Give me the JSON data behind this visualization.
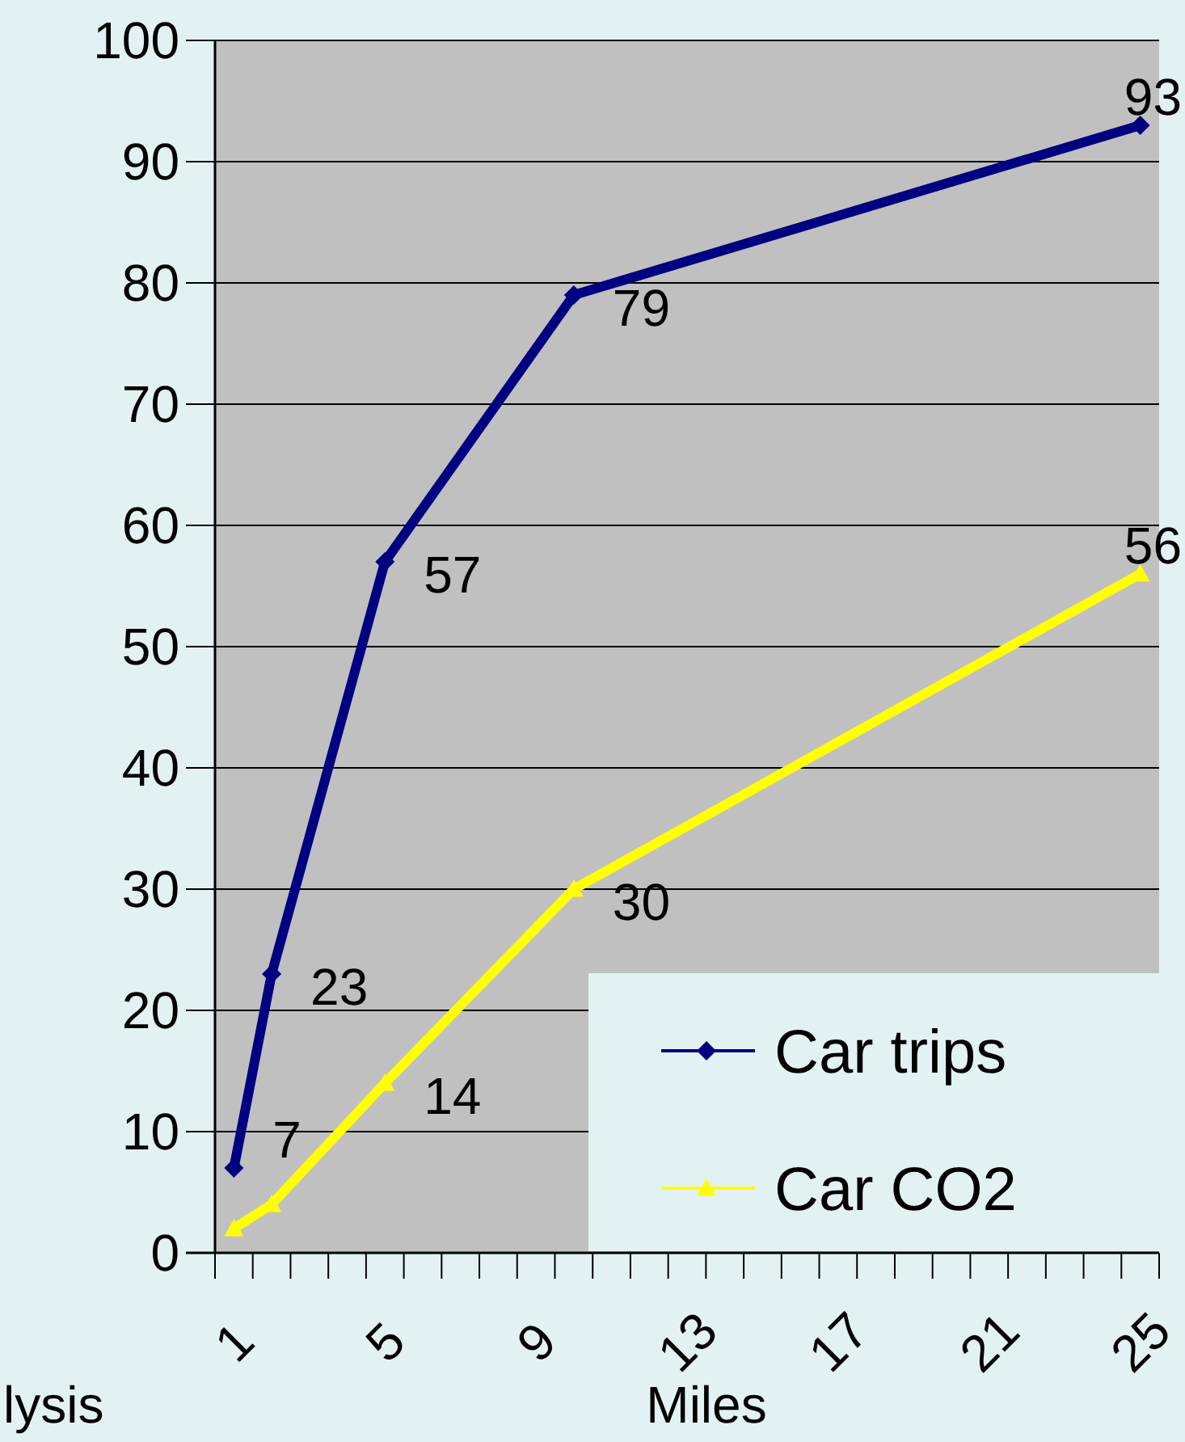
{
  "chart_data": {
    "type": "line",
    "xlabel": "Miles",
    "categories": [
      "1",
      null,
      null,
      null,
      "5",
      null,
      null,
      null,
      "9",
      null,
      null,
      null,
      "13",
      null,
      null,
      null,
      "17",
      null,
      null,
      null,
      "21",
      null,
      null,
      null,
      "25"
    ],
    "series": [
      {
        "name": "Car trips",
        "color": "#000080",
        "marker": "diamond",
        "values": [
          7,
          23,
          null,
          null,
          57,
          null,
          null,
          null,
          null,
          79,
          null,
          null,
          null,
          null,
          null,
          null,
          null,
          null,
          null,
          null,
          null,
          null,
          null,
          null,
          93
        ],
        "value_labels": [
          "7",
          "23",
          null,
          null,
          "57",
          null,
          null,
          null,
          null,
          "79",
          null,
          null,
          null,
          null,
          null,
          null,
          null,
          null,
          null,
          null,
          null,
          null,
          null,
          null,
          "93"
        ]
      },
      {
        "name": "Car CO2",
        "color": "#ffff00",
        "marker": "triangle",
        "values": [
          2,
          4,
          null,
          null,
          14,
          null,
          null,
          null,
          null,
          30,
          null,
          null,
          null,
          null,
          null,
          null,
          null,
          null,
          null,
          null,
          null,
          null,
          null,
          null,
          56
        ],
        "value_labels": [
          null,
          null,
          null,
          null,
          "14",
          null,
          null,
          null,
          null,
          "30",
          null,
          null,
          null,
          null,
          null,
          null,
          null,
          null,
          null,
          null,
          null,
          null,
          null,
          null,
          "56"
        ]
      }
    ],
    "ylim": [
      0,
      100
    ],
    "yticks": [
      0,
      10,
      20,
      30,
      40,
      50,
      60,
      70,
      80,
      90,
      100
    ],
    "grid": "y",
    "legend": "bottom right",
    "annotations": [
      "lysis"
    ]
  }
}
